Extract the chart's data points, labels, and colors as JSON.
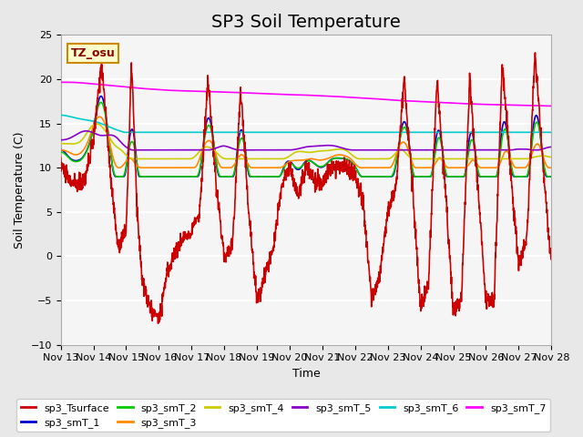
{
  "title": "SP3 Soil Temperature",
  "ylabel": "Soil Temperature (C)",
  "xlabel": "Time",
  "annotation": "TZ_osu",
  "ylim": [
    -10,
    25
  ],
  "xlim": [
    0,
    360
  ],
  "x_tick_labels": [
    "Nov 13",
    "Nov 14",
    "Nov 15",
    "Nov 16",
    "Nov 17",
    "Nov 18",
    "Nov 19",
    "Nov 20",
    "Nov 21",
    "Nov 22",
    "Nov 23",
    "Nov 24",
    "Nov 25",
    "Nov 26",
    "Nov 27",
    "Nov 28"
  ],
  "series_colors": {
    "sp3_Tsurface": "#cc0000",
    "sp3_smT_1": "#0000cc",
    "sp3_smT_2": "#00cc00",
    "sp3_smT_3": "#ff8800",
    "sp3_smT_4": "#cccc00",
    "sp3_smT_5": "#8800cc",
    "sp3_smT_6": "#00cccc",
    "sp3_smT_7": "#ff00ff"
  },
  "background_color": "#e8e8e8",
  "plot_bg_color": "#f5f5f5",
  "grid_color": "#ffffff",
  "title_fontsize": 14,
  "axis_fontsize": 9,
  "tick_fontsize": 8
}
